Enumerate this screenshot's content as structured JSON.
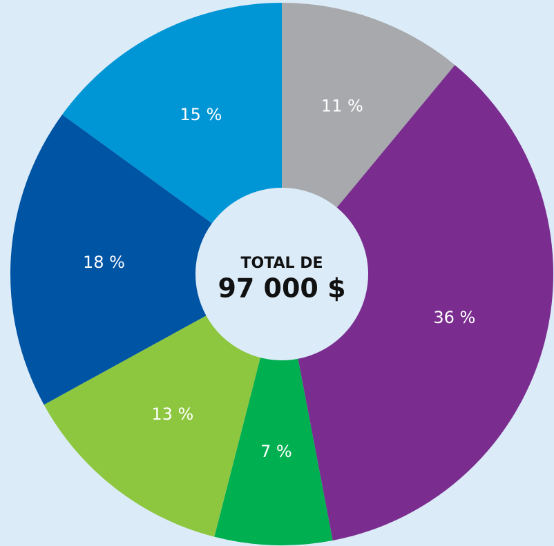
{
  "chart_data": {
    "type": "donut",
    "annotations": [
      "TOTAL DE",
      "97 000 $"
    ],
    "values": [
      11,
      36,
      7,
      13,
      18,
      15
    ],
    "value_labels": [
      "11 %",
      "36 %",
      "7 %",
      "13 %",
      "18 %",
      "15 %"
    ],
    "colors": [
      "#a7a9ac",
      "#7a2d8f",
      "#00b050",
      "#8dc63f",
      "#0054a4",
      "#0096d6"
    ]
  }
}
